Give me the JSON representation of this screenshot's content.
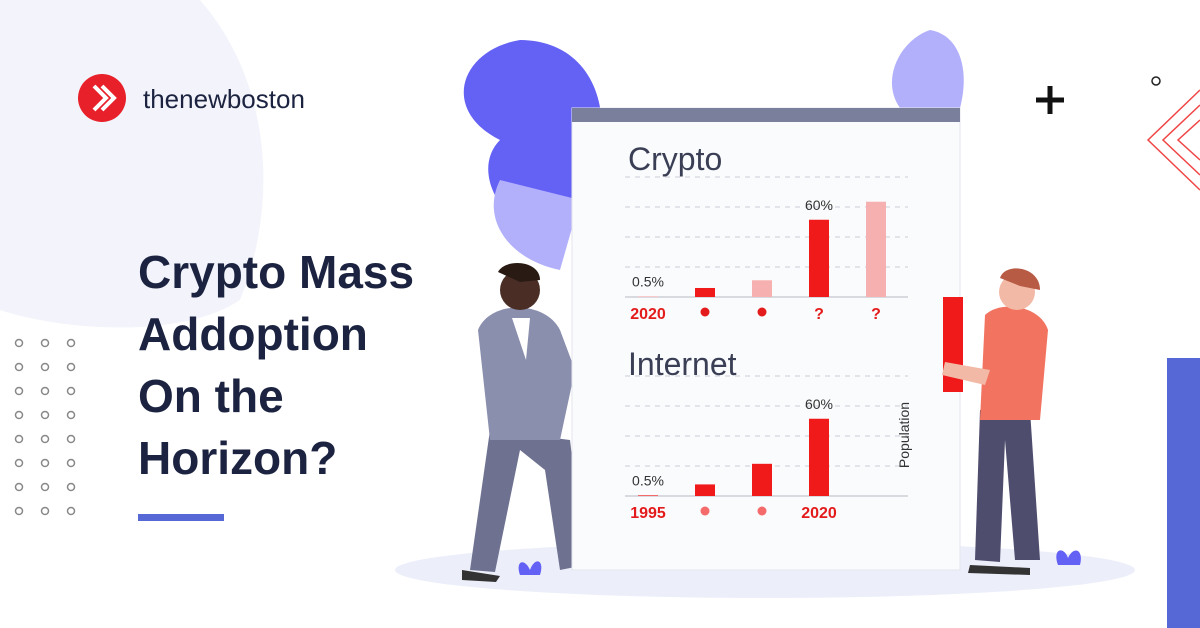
{
  "brand": {
    "name": "thenewboston"
  },
  "headline": {
    "lines": [
      "Crypto Mass",
      "Addoption",
      "On the",
      "Horizon?"
    ]
  },
  "chart_data": [
    {
      "type": "bar",
      "title": "Crypto",
      "categories": [
        "2020",
        null,
        null,
        "?",
        "?"
      ],
      "values": [
        0.5,
        7,
        13,
        60,
        74
      ],
      "value_labels": [
        "0.5%",
        null,
        null,
        "60%",
        null
      ],
      "colors": [
        "#f7b0b0",
        "#f01a1a",
        "#f7b0b0",
        "#f01a1a",
        "#f7b0b0"
      ],
      "ylim": [
        0,
        80
      ]
    },
    {
      "type": "bar",
      "title": "Internet",
      "categories": [
        "1995",
        null,
        null,
        "2020"
      ],
      "values": [
        0.5,
        9,
        25,
        60
      ],
      "value_labels": [
        "0.5%",
        null,
        null,
        "60%"
      ],
      "colors": [
        "#f01a1a",
        "#f01a1a",
        "#f01a1a",
        "#f01a1a"
      ],
      "ylim": [
        0,
        80
      ],
      "ylabel": "Population"
    }
  ]
}
